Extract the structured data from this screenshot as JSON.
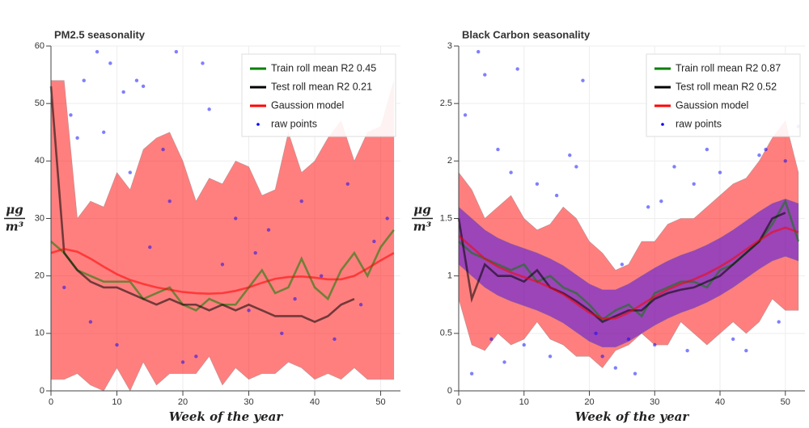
{
  "chart_data": [
    {
      "type": "line",
      "title": "PM2.5 seasonality",
      "xlabel": "Week of the year",
      "ylabel": {
        "numerator": "μg",
        "denominator": "m³"
      },
      "xlim": [
        0,
        53
      ],
      "xticks": [
        0,
        10,
        20,
        30,
        40,
        50
      ],
      "ylim": [
        0,
        60
      ],
      "yticks": [
        0,
        10,
        20,
        30,
        40,
        50,
        60
      ],
      "grid": true,
      "legend": "upper right",
      "x": [
        0,
        2,
        4,
        6,
        8,
        10,
        12,
        14,
        16,
        18,
        20,
        22,
        24,
        26,
        28,
        30,
        32,
        34,
        36,
        38,
        40,
        42,
        44,
        46,
        48,
        50,
        52
      ],
      "band": {
        "color": "#ff0000",
        "lower": [
          2,
          2,
          3,
          1,
          0,
          4,
          0,
          5,
          1,
          3,
          3,
          3,
          6,
          1,
          4,
          2,
          3,
          3,
          5,
          4,
          2,
          3,
          2,
          4,
          2,
          2,
          2
        ],
        "upper": [
          54,
          54,
          30,
          33,
          32,
          38,
          35,
          42,
          44,
          45,
          40,
          33,
          37,
          36,
          40,
          39,
          34,
          35,
          45,
          38,
          40,
          44,
          47,
          40,
          45,
          46,
          54
        ]
      },
      "series": [
        {
          "name": "Train roll mean R2 0.45",
          "color": "#008000",
          "values": [
            26,
            24,
            21,
            20,
            19,
            19,
            19,
            16,
            17,
            18,
            15,
            14,
            16,
            15,
            15,
            18,
            21,
            17,
            18,
            23,
            18,
            16,
            21,
            24,
            20,
            25,
            28
          ]
        },
        {
          "name": "Test roll mean R2 0.21",
          "color": "#000000",
          "values": [
            53,
            24,
            21,
            19,
            18,
            18,
            17,
            16,
            15,
            16,
            15,
            15,
            14,
            15,
            14,
            15,
            14,
            13,
            13,
            13,
            12,
            13,
            15,
            16,
            null,
            null,
            null
          ]
        },
        {
          "name": "Gaussion model",
          "color": "#ff0000",
          "values": [
            24,
            24.7,
            24.2,
            23,
            21.6,
            20.3,
            19.3,
            18.6,
            18,
            17.6,
            17.2,
            17,
            16.9,
            17,
            17.4,
            18,
            18.8,
            19.5,
            19.8,
            19.9,
            19.7,
            19.4,
            19.4,
            20,
            21.3,
            22.7,
            24
          ]
        }
      ],
      "points": {
        "name": "raw points",
        "color": "#0000ff",
        "x": [
          5,
          7,
          9,
          13,
          14,
          19,
          23,
          24,
          8,
          11,
          3,
          17,
          28,
          33,
          38,
          45,
          49,
          2,
          6,
          10,
          15,
          20,
          26,
          30,
          35,
          41,
          47,
          51,
          12,
          22,
          31,
          43,
          18,
          37,
          4
        ],
        "y": [
          54,
          59,
          57,
          54,
          53,
          59,
          57,
          49,
          45,
          52,
          48,
          42,
          30,
          28,
          33,
          36,
          26,
          18,
          12,
          8,
          25,
          5,
          22,
          14,
          10,
          20,
          15,
          30,
          38,
          6,
          24,
          9,
          33,
          16,
          44
        ]
      }
    },
    {
      "type": "line",
      "title": "Black Carbon seasonality",
      "xlabel": "Week of the year",
      "ylabel": {
        "numerator": "μg",
        "denominator": "m³"
      },
      "xlim": [
        0,
        53
      ],
      "xticks": [
        0,
        10,
        20,
        30,
        40,
        50
      ],
      "ylim": [
        0,
        3
      ],
      "yticks": [
        0,
        0.5,
        1,
        1.5,
        2,
        2.5,
        3
      ],
      "grid": true,
      "legend": "upper right",
      "x": [
        0,
        2,
        4,
        6,
        8,
        10,
        12,
        14,
        16,
        18,
        20,
        22,
        24,
        26,
        28,
        30,
        32,
        34,
        36,
        38,
        40,
        42,
        44,
        46,
        48,
        50,
        52
      ],
      "band": {
        "color": "#ff0000",
        "lower": [
          0.8,
          0.4,
          0.35,
          0.5,
          0.4,
          0.45,
          0.6,
          0.45,
          0.4,
          0.3,
          0.3,
          0.2,
          0.35,
          0.4,
          0.5,
          0.4,
          0.4,
          0.6,
          0.5,
          0.4,
          0.5,
          0.6,
          0.5,
          0.6,
          0.8,
          0.7,
          0.7
        ],
        "upper": [
          1.9,
          1.75,
          1.5,
          1.6,
          1.7,
          1.5,
          1.4,
          1.45,
          1.6,
          1.5,
          1.3,
          1.2,
          1.05,
          1.1,
          1.3,
          1.3,
          1.45,
          1.5,
          1.5,
          1.6,
          1.7,
          1.8,
          1.85,
          2.0,
          2.2,
          2.35,
          1.9
        ]
      },
      "model_band": {
        "color": "#2200ff",
        "lower": [
          1.1,
          1.0,
          0.9,
          0.83,
          0.78,
          0.74,
          0.7,
          0.65,
          0.59,
          0.51,
          0.43,
          0.38,
          0.38,
          0.43,
          0.5,
          0.57,
          0.63,
          0.68,
          0.72,
          0.77,
          0.83,
          0.9,
          0.98,
          1.06,
          1.13,
          1.17,
          1.13
        ],
        "upper": [
          1.6,
          1.5,
          1.4,
          1.33,
          1.28,
          1.24,
          1.2,
          1.15,
          1.09,
          1.01,
          0.93,
          0.88,
          0.88,
          0.93,
          1.0,
          1.07,
          1.13,
          1.18,
          1.22,
          1.27,
          1.33,
          1.4,
          1.48,
          1.56,
          1.63,
          1.67,
          1.63
        ]
      },
      "series": [
        {
          "name": "Train roll mean R2 0.87",
          "color": "#008000",
          "values": [
            1.3,
            1.2,
            1.15,
            1.1,
            1.05,
            1.1,
            0.95,
            1.0,
            0.9,
            0.85,
            0.75,
            0.62,
            0.7,
            0.75,
            0.65,
            0.85,
            0.9,
            0.95,
            0.95,
            0.9,
            1.05,
            1.1,
            1.2,
            1.3,
            1.45,
            1.65,
            1.3
          ]
        },
        {
          "name": "Test roll mean R2 0.52",
          "color": "#000000",
          "values": [
            1.5,
            0.8,
            1.1,
            1.0,
            1.0,
            0.95,
            1.05,
            0.9,
            0.85,
            0.78,
            0.7,
            0.6,
            0.65,
            0.7,
            0.7,
            0.8,
            0.85,
            0.88,
            0.9,
            0.95,
            1.0,
            1.1,
            1.2,
            1.3,
            1.5,
            1.55,
            null
          ]
        },
        {
          "name": "Gaussion model",
          "color": "#ff0000",
          "values": [
            1.35,
            1.25,
            1.15,
            1.08,
            1.03,
            0.99,
            0.95,
            0.9,
            0.84,
            0.76,
            0.68,
            0.63,
            0.63,
            0.68,
            0.75,
            0.82,
            0.88,
            0.93,
            0.97,
            1.02,
            1.08,
            1.15,
            1.23,
            1.31,
            1.38,
            1.42,
            1.38
          ]
        }
      ],
      "points": {
        "name": "raw points",
        "color": "#0000ff",
        "x": [
          3,
          4,
          9,
          19,
          1,
          2,
          6,
          8,
          12,
          15,
          22,
          24,
          27,
          29,
          33,
          36,
          38,
          44,
          47,
          50,
          52,
          5,
          10,
          14,
          18,
          21,
          26,
          31,
          35,
          40,
          42,
          46,
          49,
          7,
          17,
          25,
          30
        ],
        "y": [
          2.95,
          2.75,
          2.8,
          2.7,
          2.4,
          0.15,
          2.1,
          1.9,
          1.8,
          1.7,
          0.3,
          0.2,
          0.15,
          1.6,
          1.95,
          1.8,
          2.1,
          0.35,
          2.1,
          2.0,
          2.3,
          0.45,
          0.4,
          0.3,
          1.95,
          0.5,
          0.45,
          1.65,
          0.35,
          1.9,
          0.45,
          2.05,
          0.6,
          0.25,
          2.05,
          1.1,
          0.4
        ]
      }
    }
  ]
}
